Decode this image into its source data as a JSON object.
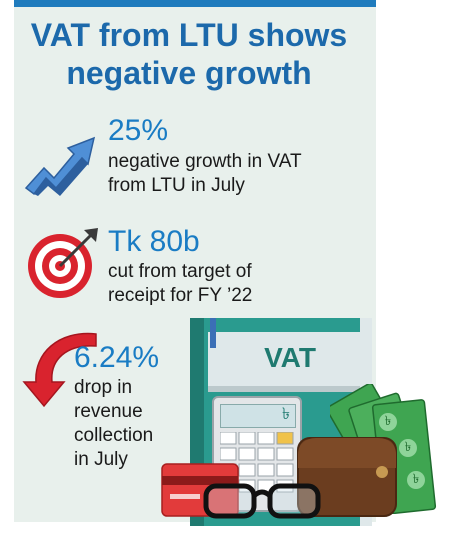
{
  "title_line1": "VAT from LTU shows",
  "title_line2": "negative growth",
  "stats": [
    {
      "value": "25%",
      "desc_line1": "negative growth in VAT",
      "desc_line2": "from LTU in July"
    },
    {
      "value": "Tk 80b",
      "desc_line1": "cut from target of",
      "desc_line2": "receipt for FY ’22"
    },
    {
      "value": "6.24%",
      "desc_line1": "drop in",
      "desc_line2": "revenue",
      "desc_line3": "collection",
      "desc_line4": "in July"
    }
  ],
  "book_label": "VAT",
  "currency_symbol": "৳",
  "icons": [
    "trend-up-arrow-icon",
    "target-dart-icon",
    "curved-down-arrow-icon",
    "vat-book-icon",
    "calculator-icon",
    "wallet-icon",
    "cash-notes-icon",
    "credit-card-icon",
    "glasses-icon"
  ],
  "colors": {
    "accent_blue": "#1a7cc4",
    "title_blue": "#1c69ab",
    "panel_bg": "#e8f0ec",
    "arrow_red": "#d9232e",
    "book_teal": "#2a9b8f",
    "cash_green": "#3fa551"
  }
}
